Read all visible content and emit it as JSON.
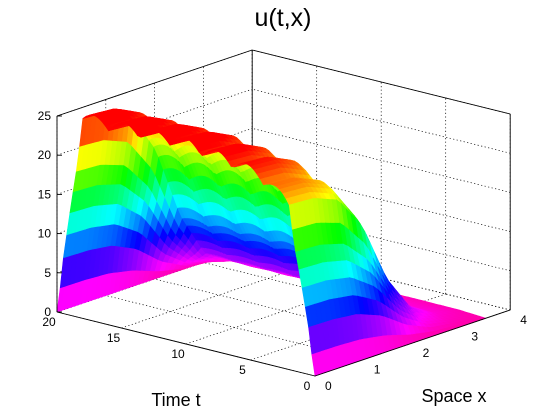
{
  "chart_data": {
    "type": "surface",
    "title": "u(t,x)",
    "xlabel": "Time t",
    "ylabel": "Space x",
    "zlabel": "",
    "x_range": [
      0,
      20
    ],
    "y_range": [
      0,
      4
    ],
    "z_range": [
      0,
      25
    ],
    "x_ticks": [
      0,
      5,
      10,
      15,
      20
    ],
    "y_ticks": [
      0,
      1,
      2,
      3,
      4
    ],
    "z_ticks": [
      0,
      5,
      10,
      15,
      20,
      25
    ],
    "surface_x_max": 3.5,
    "colormap": "hsv",
    "grid": true,
    "profile_along_x": {
      "x": [
        0,
        0.5,
        1.0,
        1.5,
        2.0,
        2.5,
        3.0,
        3.5
      ],
      "u_fraction_of_peak": [
        1.0,
        0.99,
        0.93,
        0.72,
        0.35,
        0.12,
        0.04,
        0.01
      ]
    },
    "crest_along_t": {
      "t": [
        0,
        2,
        4,
        6,
        8,
        10,
        12,
        14,
        16,
        18,
        20
      ],
      "u_peak": [
        0,
        21,
        23.5,
        24.5,
        25,
        25.5,
        25.5,
        25.5,
        25.5,
        25.5,
        0
      ],
      "oscillation_count": 7,
      "oscillation_amplitude": 1.5
    }
  }
}
